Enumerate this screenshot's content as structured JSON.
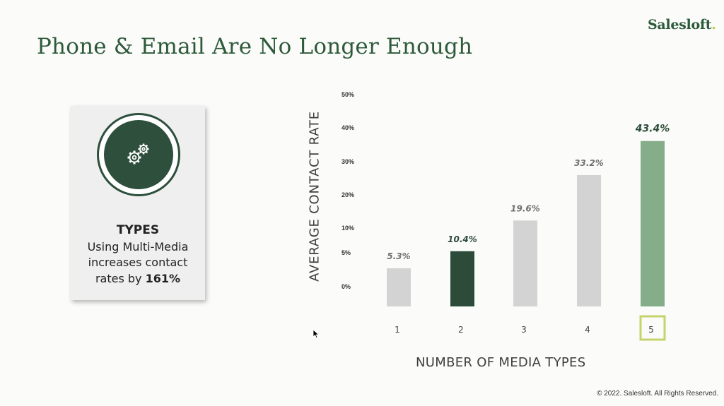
{
  "slide": {
    "title": "Phone & Email Are No Longer Enough",
    "logo_text": "Salesloft",
    "copyright": "© 2022. Salesloft. All Rights Reserved."
  },
  "card": {
    "icon": "gears-icon",
    "heading": "TYPES",
    "line1": "Using Multi-Media",
    "line2": "increases contact",
    "line3_prefix": "rates by ",
    "line3_value": "161%"
  },
  "chart_data": {
    "type": "bar",
    "xlabel": "NUMBER OF MEDIA TYPES",
    "ylabel": "AVERAGE CONTACT RATE",
    "categories": [
      "1",
      "2",
      "3",
      "4",
      "5"
    ],
    "values": [
      5.3,
      10.4,
      19.6,
      33.2,
      43.4
    ],
    "value_labels": [
      "5.3%",
      "10.4%",
      "19.6%",
      "33.2%",
      "43.4%"
    ],
    "y_ticks": [
      "50%",
      "40%",
      "30%",
      "20%",
      "10%",
      "5%",
      "0%"
    ],
    "ylim": [
      0,
      50
    ],
    "grid": false,
    "highlighted_category": "5",
    "colors": [
      "#d3d3d3",
      "#2c4c39",
      "#d3d3d3",
      "#d3d3d3",
      "#86ad8a"
    ],
    "highlight_box_color": "#c6d36b",
    "label_color_default": "#707070",
    "label_color_emphasis": "#2c4c39"
  }
}
